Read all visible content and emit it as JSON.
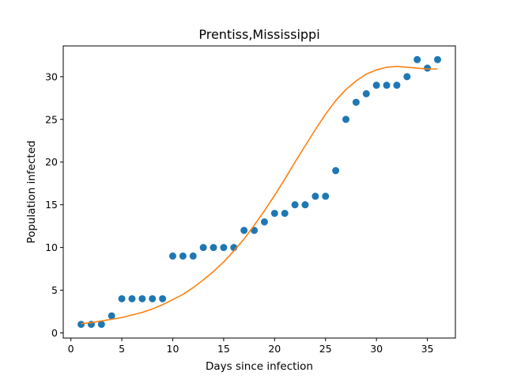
{
  "chart_data": {
    "type": "scatter",
    "title": "Prentiss,Mississippi",
    "xlabel": "Days since infection",
    "ylabel": "Population infected",
    "xlim": [
      -0.75,
      37.75
    ],
    "ylim": [
      -0.6,
      33.6
    ],
    "xticks": [
      0,
      5,
      10,
      15,
      20,
      25,
      30,
      35
    ],
    "yticks": [
      0,
      5,
      10,
      15,
      20,
      25,
      30
    ],
    "grid": false,
    "colors": {
      "points": "#1f77b4",
      "fit": "#ff7f0e"
    },
    "series": [
      {
        "kind": "scatter",
        "x": [
          1,
          2,
          3,
          4,
          5,
          6,
          7,
          8,
          9,
          10,
          11,
          12,
          13,
          14,
          15,
          16,
          17,
          18,
          19,
          20,
          21,
          22,
          23,
          24,
          25,
          26,
          27,
          28,
          29,
          30,
          31,
          32,
          33,
          34,
          35,
          36
        ],
        "y": [
          1,
          1,
          1,
          2,
          4,
          4,
          4,
          4,
          4,
          9,
          9,
          9,
          10,
          10,
          10,
          10,
          12,
          12,
          13,
          14,
          14,
          15,
          15,
          16,
          16,
          19,
          25,
          27,
          28,
          29,
          29,
          29,
          30,
          32,
          31,
          32
        ]
      },
      {
        "kind": "line",
        "x": [
          1,
          2,
          3,
          4,
          5,
          6,
          7,
          8,
          9,
          10,
          11,
          12,
          13,
          14,
          15,
          16,
          17,
          18,
          19,
          20,
          21,
          22,
          23,
          24,
          25,
          26,
          27,
          28,
          29,
          30,
          31,
          32,
          33,
          34,
          35,
          36
        ],
        "y": [
          1.1,
          1.2,
          1.4,
          1.6,
          1.8,
          2.1,
          2.4,
          2.8,
          3.3,
          3.9,
          4.5,
          5.3,
          6.2,
          7.2,
          8.3,
          9.6,
          11.0,
          12.6,
          14.3,
          16.1,
          18.0,
          20.0,
          21.9,
          23.8,
          25.6,
          27.2,
          28.5,
          29.5,
          30.3,
          30.8,
          31.1,
          31.2,
          31.1,
          31.0,
          30.9,
          30.9
        ]
      }
    ]
  }
}
